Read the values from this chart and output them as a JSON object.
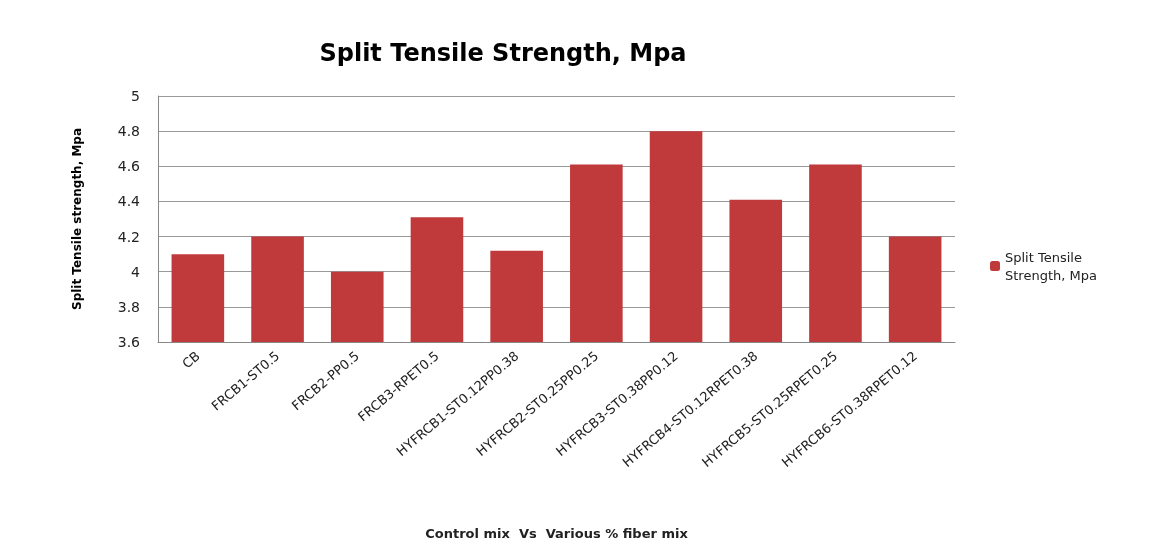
{
  "chart_data": {
    "type": "bar",
    "title": "Split Tensile Strength, Mpa",
    "xlabel": "Control mix  Vs  Various % fiber mix",
    "ylabel": "Split Tensile strength, Mpa",
    "categories": [
      "CB",
      "FRCB1-ST0.5",
      "FRCB2-PP0.5",
      "FRCB3-RPET0.5",
      "HYFRCB1-ST0.12PP0.38",
      "HYFRCB2-ST0.25PP0.25",
      "HYFRCB3-ST0.38PP0.12",
      "HYFRCB4-ST0.12RPET0.38",
      "HYFRCB5-ST0.25RPET0.25",
      "HYFRCB6-ST0.38RPET0.12"
    ],
    "series": [
      {
        "name": "Split Tensile Strength, Mpa",
        "color": "#c0393b",
        "values": [
          4.1,
          4.2,
          4.0,
          4.31,
          4.12,
          4.61,
          4.8,
          4.41,
          4.61,
          4.2
        ]
      }
    ],
    "ylim": [
      3.6,
      5
    ],
    "yticks": [
      3.6,
      3.8,
      4,
      4.2,
      4.4,
      4.6,
      4.8,
      5
    ],
    "grid": "y",
    "legend": "right"
  }
}
